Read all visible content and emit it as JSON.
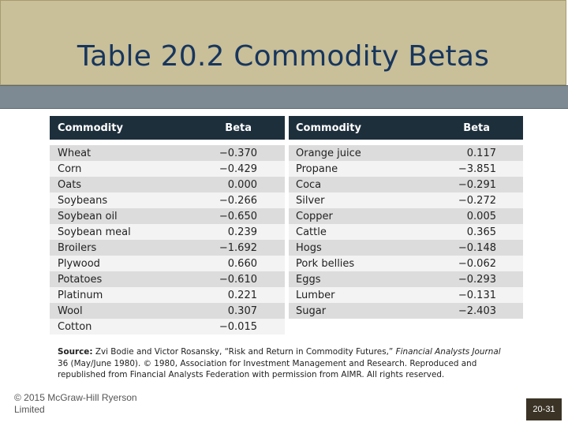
{
  "title": "Table 20.2 Commodity Betas",
  "table_left": {
    "header_commodity": "Commodity",
    "header_beta": "Beta",
    "rows": [
      {
        "commodity": "Wheat",
        "beta": "−0.370"
      },
      {
        "commodity": "Corn",
        "beta": "−0.429"
      },
      {
        "commodity": "Oats",
        "beta": "0.000"
      },
      {
        "commodity": "Soybeans",
        "beta": "−0.266"
      },
      {
        "commodity": "Soybean oil",
        "beta": "−0.650"
      },
      {
        "commodity": "Soybean meal",
        "beta": "0.239"
      },
      {
        "commodity": "Broilers",
        "beta": "−1.692"
      },
      {
        "commodity": "Plywood",
        "beta": "0.660"
      },
      {
        "commodity": "Potatoes",
        "beta": "−0.610"
      },
      {
        "commodity": "Platinum",
        "beta": "0.221"
      },
      {
        "commodity": "Wool",
        "beta": "0.307"
      },
      {
        "commodity": "Cotton",
        "beta": "−0.015"
      }
    ]
  },
  "table_right": {
    "header_commodity": "Commodity",
    "header_beta": "Beta",
    "rows": [
      {
        "commodity": "Orange juice",
        "beta": "0.117"
      },
      {
        "commodity": "Propane",
        "beta": "−3.851"
      },
      {
        "commodity": "Coca",
        "beta": "−0.291"
      },
      {
        "commodity": "Silver",
        "beta": "−0.272"
      },
      {
        "commodity": "Copper",
        "beta": "0.005"
      },
      {
        "commodity": "Cattle",
        "beta": "0.365"
      },
      {
        "commodity": "Hogs",
        "beta": "−0.148"
      },
      {
        "commodity": "Pork bellies",
        "beta": "−0.062"
      },
      {
        "commodity": "Eggs",
        "beta": "−0.293"
      },
      {
        "commodity": "Lumber",
        "beta": "−0.131"
      },
      {
        "commodity": "Sugar",
        "beta": "−2.403"
      }
    ]
  },
  "source": {
    "label": "Source:",
    "text_before": "Zvi Bodie and Victor Rosansky, “Risk and Return in Commodity Futures,”",
    "journal": "Financial Analysts Journal",
    "text_after": "36 (May/June 1980). © 1980, Association for Investment Management and Research. Reproduced and republished from Financial Analysts Federation with permission from AIMR. All rights reserved."
  },
  "footer": {
    "copyright": "© 2015 McGraw-Hill Ryerson Limited",
    "page": "20-31"
  }
}
